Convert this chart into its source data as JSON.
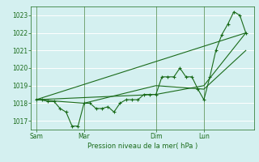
{
  "background_color": "#d4f0f0",
  "grid_color": "#ffffff",
  "line_color": "#1a6b1a",
  "xlabel": "Pression niveau de la mer( hPa )",
  "ylim": [
    1016.5,
    1023.5
  ],
  "yticks": [
    1017,
    1018,
    1019,
    1020,
    1021,
    1022,
    1023
  ],
  "day_labels": [
    "Sam",
    "Mar",
    "Dim",
    "Lun"
  ],
  "day_positions": [
    0,
    48,
    120,
    168
  ],
  "xlim": [
    -5,
    218
  ],
  "series_main": [
    0,
    1018.2,
    6,
    1018.2,
    12,
    1018.1,
    18,
    1018.1,
    24,
    1017.7,
    30,
    1017.5,
    36,
    1016.7,
    42,
    1016.7,
    48,
    1018.0,
    54,
    1018.0,
    60,
    1017.7,
    66,
    1017.7,
    72,
    1017.8,
    78,
    1017.5,
    84,
    1018.0,
    90,
    1018.2,
    96,
    1018.2,
    102,
    1018.2,
    108,
    1018.5,
    114,
    1018.5,
    120,
    1018.5,
    126,
    1019.5,
    132,
    1019.5,
    138,
    1019.5,
    144,
    1020.0,
    150,
    1019.5,
    156,
    1019.5,
    162,
    1018.8,
    168,
    1018.2,
    174,
    1019.5,
    180,
    1021.0,
    186,
    1021.9,
    192,
    1022.5,
    198,
    1023.2,
    204,
    1023.0,
    210,
    1022.0
  ],
  "series_extra": [
    [
      0,
      1018.2,
      210,
      1022.0
    ],
    [
      0,
      1018.2,
      48,
      1018.0,
      120,
      1019.0,
      168,
      1018.8,
      210,
      1021.0
    ],
    [
      0,
      1018.2,
      120,
      1018.5,
      168,
      1019.0,
      210,
      1022.0
    ]
  ],
  "label_fontsize": 5.5,
  "tick_fontsize": 5.5,
  "xlabel_fontsize": 6.0
}
